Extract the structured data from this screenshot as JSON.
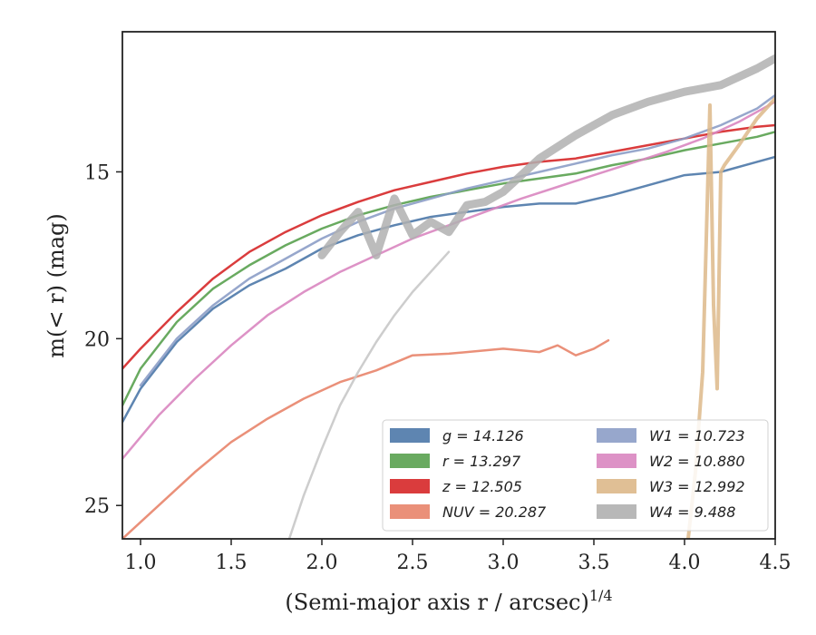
{
  "chart_data": {
    "type": "line",
    "xlabel": "(Semi-major axis r / arcsec)",
    "xlabel_superscript": "1/4",
    "ylabel": "m(< r) (mag)",
    "xlim": [
      0.9,
      4.5
    ],
    "ylim": [
      26.0,
      10.8
    ],
    "y_inverted": true,
    "grid": false,
    "legend_position": "lower-right",
    "legend_columns": 2,
    "x_ticks": [
      "1.0",
      "1.5",
      "2.0",
      "2.5",
      "3.0",
      "3.5",
      "4.0",
      "4.5"
    ],
    "y_ticks": [
      "15",
      "20",
      "25"
    ],
    "x_tick_values": [
      1.0,
      1.5,
      2.0,
      2.5,
      3.0,
      3.5,
      4.0,
      4.5
    ],
    "y_tick_values": [
      15,
      20,
      25
    ],
    "series": [
      {
        "name": "g = 14.126",
        "band": "g",
        "total_mag": "14.126",
        "color": "#4c78a8",
        "x": [
          0.9,
          1.0,
          1.2,
          1.4,
          1.6,
          1.8,
          2.0,
          2.2,
          2.4,
          2.6,
          2.8,
          3.0,
          3.2,
          3.4,
          3.6,
          3.8,
          4.0,
          4.2,
          4.4,
          4.5
        ],
        "y": [
          22.5,
          21.5,
          20.1,
          19.1,
          18.4,
          17.9,
          17.3,
          16.9,
          16.6,
          16.35,
          16.2,
          16.05,
          15.95,
          15.95,
          15.7,
          15.4,
          15.1,
          15.0,
          14.7,
          14.55
        ]
      },
      {
        "name": "r = 13.297",
        "band": "r",
        "total_mag": "13.297",
        "color": "#59a14f",
        "x": [
          0.9,
          1.0,
          1.2,
          1.4,
          1.6,
          1.8,
          2.0,
          2.2,
          2.4,
          2.6,
          2.8,
          3.0,
          3.2,
          3.4,
          3.6,
          3.8,
          4.0,
          4.2,
          4.4,
          4.5
        ],
        "y": [
          22.0,
          20.9,
          19.5,
          18.5,
          17.8,
          17.2,
          16.7,
          16.3,
          16.0,
          15.75,
          15.55,
          15.35,
          15.2,
          15.05,
          14.8,
          14.6,
          14.35,
          14.15,
          13.95,
          13.8
        ]
      },
      {
        "name": "z = 12.505",
        "band": "z",
        "total_mag": "12.505",
        "color": "#d62728",
        "x": [
          0.9,
          1.0,
          1.2,
          1.4,
          1.6,
          1.8,
          2.0,
          2.2,
          2.4,
          2.6,
          2.8,
          3.0,
          3.2,
          3.4,
          3.6,
          3.8,
          4.0,
          4.2,
          4.4,
          4.5
        ],
        "y": [
          20.9,
          20.3,
          19.2,
          18.2,
          17.4,
          16.8,
          16.3,
          15.9,
          15.55,
          15.3,
          15.05,
          14.85,
          14.7,
          14.6,
          14.4,
          14.2,
          14.0,
          13.8,
          13.65,
          13.6
        ]
      },
      {
        "name": "NUV = 20.287",
        "band": "NUV",
        "total_mag": "20.287",
        "color": "#e8846a",
        "x": [
          0.9,
          1.1,
          1.3,
          1.5,
          1.7,
          1.9,
          2.1,
          2.3,
          2.5,
          2.7,
          2.9,
          3.0,
          3.1,
          3.2,
          3.3,
          3.4,
          3.5,
          3.58
        ],
        "y": [
          26.0,
          25.0,
          24.0,
          23.1,
          22.4,
          21.8,
          21.3,
          20.95,
          20.5,
          20.45,
          20.35,
          20.3,
          20.35,
          20.4,
          20.2,
          20.5,
          20.3,
          20.05
        ]
      },
      {
        "name": "W1 = 10.723",
        "band": "W1",
        "total_mag": "10.723",
        "color": "#8c9dc6",
        "x": [
          1.0,
          1.2,
          1.4,
          1.6,
          1.8,
          2.0,
          2.2,
          2.4,
          2.6,
          2.8,
          3.0,
          3.2,
          3.4,
          3.6,
          3.8,
          4.0,
          4.2,
          4.4,
          4.5
        ],
        "y": [
          21.4,
          20.0,
          19.0,
          18.2,
          17.6,
          17.0,
          16.5,
          16.1,
          15.8,
          15.5,
          15.25,
          15.0,
          14.75,
          14.5,
          14.3,
          14.0,
          13.6,
          13.1,
          12.7
        ]
      },
      {
        "name": "W2 = 10.880",
        "band": "W2",
        "total_mag": "10.880",
        "color": "#d986c0",
        "x": [
          0.9,
          1.1,
          1.3,
          1.5,
          1.7,
          1.9,
          2.1,
          2.3,
          2.5,
          2.7,
          2.9,
          3.1,
          3.3,
          3.5,
          3.7,
          3.9,
          4.1,
          4.3,
          4.5
        ],
        "y": [
          23.6,
          22.3,
          21.2,
          20.2,
          19.3,
          18.6,
          18.0,
          17.5,
          17.0,
          16.6,
          16.2,
          15.8,
          15.45,
          15.1,
          14.75,
          14.4,
          14.0,
          13.5,
          12.9
        ]
      },
      {
        "name": "W3 = 12.992",
        "band": "W3",
        "total_mag": "12.992",
        "color": "#ddb889",
        "x": [
          4.02,
          4.06,
          4.1,
          4.12,
          4.14,
          4.16,
          4.18,
          4.2,
          4.22,
          4.26,
          4.3,
          4.35,
          4.4,
          4.45,
          4.5
        ],
        "y": [
          26.0,
          24.0,
          21.0,
          17.0,
          13.0,
          19.0,
          21.5,
          15.0,
          14.8,
          14.5,
          14.2,
          13.8,
          13.4,
          13.1,
          12.8
        ]
      },
      {
        "name": "W4 = 9.488",
        "band": "W4",
        "total_mag": "9.488",
        "color": "#b0b0b0",
        "x": [
          2.0,
          2.1,
          2.2,
          2.3,
          2.4,
          2.5,
          2.6,
          2.7,
          2.8,
          2.9,
          3.0,
          3.2,
          3.4,
          3.6,
          3.8,
          4.0,
          4.2,
          4.4,
          4.5
        ],
        "y": [
          17.5,
          16.8,
          16.2,
          17.5,
          15.8,
          16.9,
          16.5,
          16.8,
          16.0,
          15.9,
          15.6,
          14.6,
          13.9,
          13.3,
          12.9,
          12.6,
          12.4,
          11.9,
          11.6
        ]
      },
      {
        "name": "",
        "band": "W4-faint-tail",
        "color": "#c8c8c8",
        "x": [
          1.82,
          1.9,
          2.0,
          2.1,
          2.2,
          2.3,
          2.4,
          2.5,
          2.6,
          2.7
        ],
        "y": [
          26.0,
          24.7,
          23.3,
          22.0,
          21.0,
          20.1,
          19.3,
          18.6,
          18.0,
          17.4
        ]
      }
    ]
  }
}
